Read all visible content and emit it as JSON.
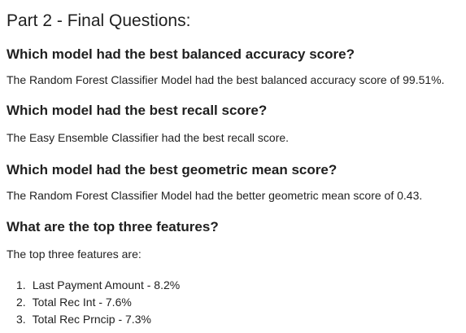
{
  "document": {
    "title": "Part 2 - Final Questions:",
    "sections": [
      {
        "question": "Which model had the best balanced accuracy score?",
        "answer": "The Random Forest Classifier Model had the best balanced accuracy score of 99.51%."
      },
      {
        "question": "Which model had the best recall score?",
        "answer": "The Easy Ensemble Classifier had the best recall score."
      },
      {
        "question": "Which model had the best geometric mean score?",
        "answer": "The Random Forest Classifier Model had the better geometric mean score of 0.43."
      },
      {
        "question": "What are the top three features?",
        "answer": "The top three features are:"
      }
    ],
    "features": [
      {
        "num": "1.",
        "text": "Last Payment Amount - 8.2%"
      },
      {
        "num": "2.",
        "text": "Total Rec Int - 7.6%"
      },
      {
        "num": "3.",
        "text": "Total Rec Prncip - 7.3%"
      }
    ]
  }
}
